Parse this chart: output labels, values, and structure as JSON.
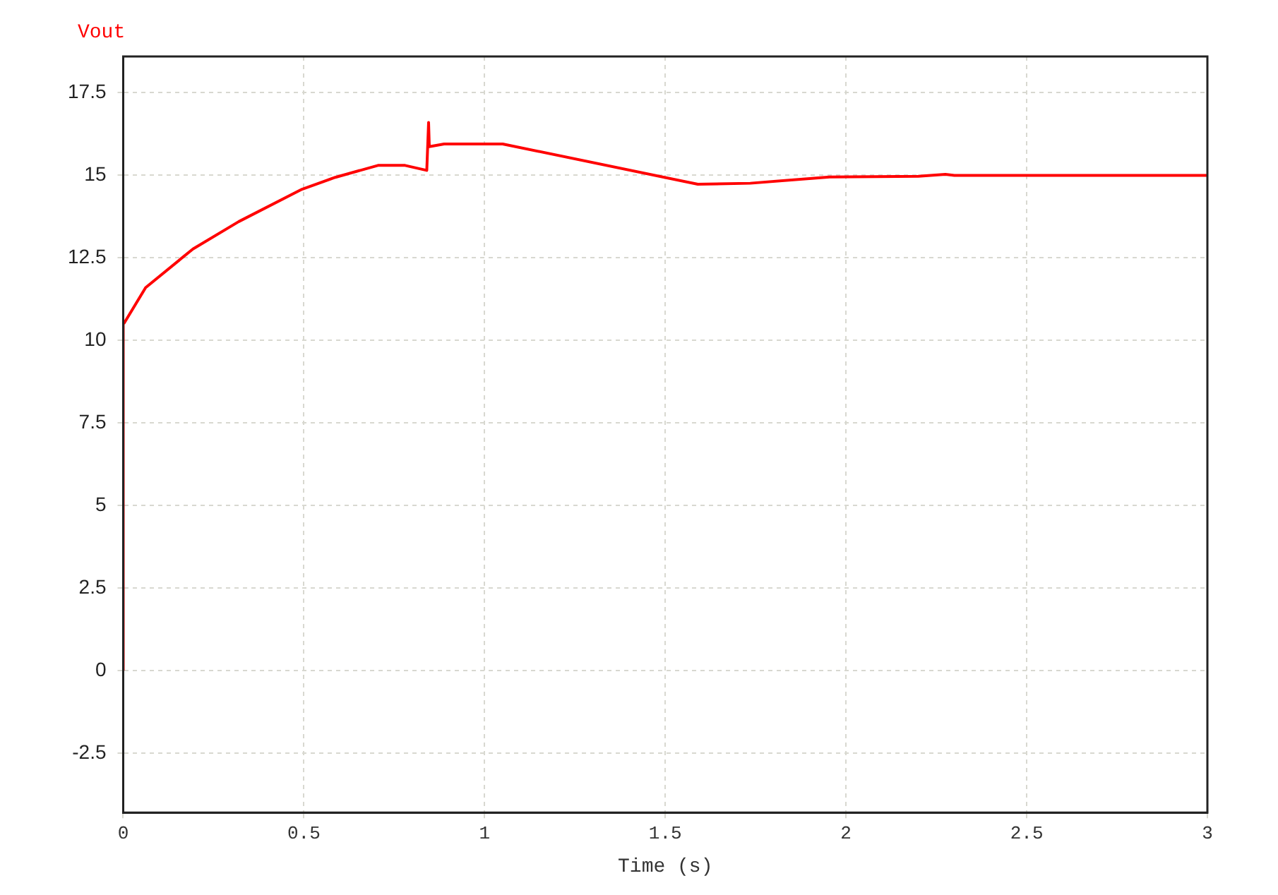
{
  "chart_data": {
    "type": "line",
    "xlabel": "Time (s)",
    "x": [
      0,
      0,
      0.003,
      0.062,
      0.193,
      0.32,
      0.495,
      0.587,
      0.705,
      0.78,
      0.84,
      0.845,
      0.847,
      0.888,
      1.05,
      1.59,
      1.735,
      1.955,
      2.2,
      2.275,
      2.3,
      3
    ],
    "series": [
      {
        "name": "Vout",
        "color": "#ff0000",
        "values": [
          0,
          10.5,
          10.53,
          11.6,
          12.77,
          13.6,
          14.58,
          14.94,
          15.3,
          15.3,
          15.15,
          16.6,
          15.87,
          15.95,
          15.95,
          14.73,
          14.76,
          14.95,
          14.97,
          15.03,
          15.0,
          15.0
        ]
      }
    ],
    "xlim": [
      0,
      3
    ],
    "xticks": [
      0,
      0.5,
      1,
      1.5,
      2,
      2.5,
      3
    ],
    "ylim": [
      -4.3,
      18.6
    ],
    "yticks": [
      -2.5,
      0,
      2.5,
      5,
      7.5,
      10,
      12.5,
      15,
      17.5
    ],
    "grid": true,
    "legend": "top left",
    "marker": "none",
    "line_style": "solid"
  }
}
